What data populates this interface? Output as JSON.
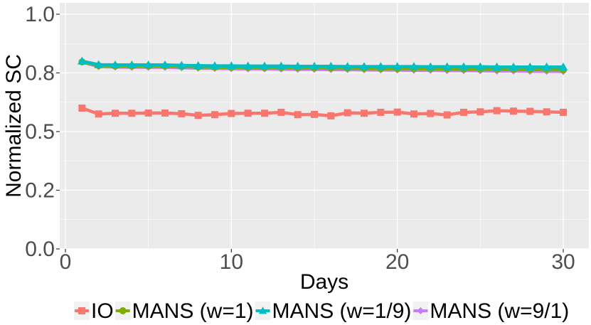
{
  "chart_data": {
    "type": "line",
    "title": "",
    "xlabel": "Days",
    "ylabel": "Normalized SC",
    "xlim": [
      0,
      31
    ],
    "ylim": [
      0,
      1
    ],
    "x_ticks": [
      0,
      10,
      20,
      30
    ],
    "x_tick_labels": [
      "0",
      "10",
      "20",
      "30"
    ],
    "y_ticks": [
      0,
      0.25,
      0.5,
      0.75,
      1.0
    ],
    "y_tick_labels": [
      "0.0",
      "0.2",
      "0.5",
      "0.8",
      "1.0"
    ],
    "grid": true,
    "legend_position": "bottom",
    "x": [
      1,
      2,
      3,
      4,
      5,
      6,
      7,
      8,
      9,
      10,
      11,
      12,
      13,
      14,
      15,
      16,
      17,
      18,
      19,
      20,
      21,
      22,
      23,
      24,
      25,
      26,
      27,
      28,
      29,
      30
    ],
    "series": [
      {
        "name": "IO",
        "color": "#f8766d",
        "marker": "square",
        "values": [
          0.6,
          0.575,
          0.578,
          0.578,
          0.579,
          0.579,
          0.576,
          0.569,
          0.572,
          0.577,
          0.578,
          0.578,
          0.582,
          0.572,
          0.573,
          0.567,
          0.58,
          0.578,
          0.582,
          0.583,
          0.575,
          0.577,
          0.571,
          0.582,
          0.584,
          0.589,
          0.587,
          0.586,
          0.584,
          0.582
        ]
      },
      {
        "name": "MANS (w=1)",
        "color": "#7cae00",
        "marker": "circle",
        "values": [
          0.797,
          0.781,
          0.779,
          0.779,
          0.779,
          0.779,
          0.777,
          0.775,
          0.774,
          0.773,
          0.773,
          0.772,
          0.772,
          0.771,
          0.771,
          0.77,
          0.77,
          0.769,
          0.768,
          0.768,
          0.768,
          0.767,
          0.767,
          0.766,
          0.766,
          0.765,
          0.765,
          0.764,
          0.764,
          0.763
        ]
      },
      {
        "name": "MANS (w=1/9)",
        "color": "#00bfc4",
        "marker": "triangle",
        "values": [
          0.8,
          0.785,
          0.784,
          0.784,
          0.784,
          0.784,
          0.782,
          0.781,
          0.78,
          0.78,
          0.779,
          0.779,
          0.779,
          0.778,
          0.778,
          0.778,
          0.777,
          0.777,
          0.777,
          0.777,
          0.777,
          0.776,
          0.776,
          0.776,
          0.776,
          0.775,
          0.775,
          0.775,
          0.775,
          0.775
        ]
      },
      {
        "name": "MANS (w=9/1)",
        "color": "#c77cff",
        "marker": "diamond",
        "values": [
          0.796,
          0.777,
          0.775,
          0.774,
          0.774,
          0.774,
          0.772,
          0.77,
          0.769,
          0.768,
          0.767,
          0.767,
          0.766,
          0.765,
          0.765,
          0.764,
          0.764,
          0.763,
          0.762,
          0.762,
          0.761,
          0.761,
          0.76,
          0.76,
          0.759,
          0.758,
          0.758,
          0.757,
          0.757,
          0.756
        ]
      }
    ]
  }
}
